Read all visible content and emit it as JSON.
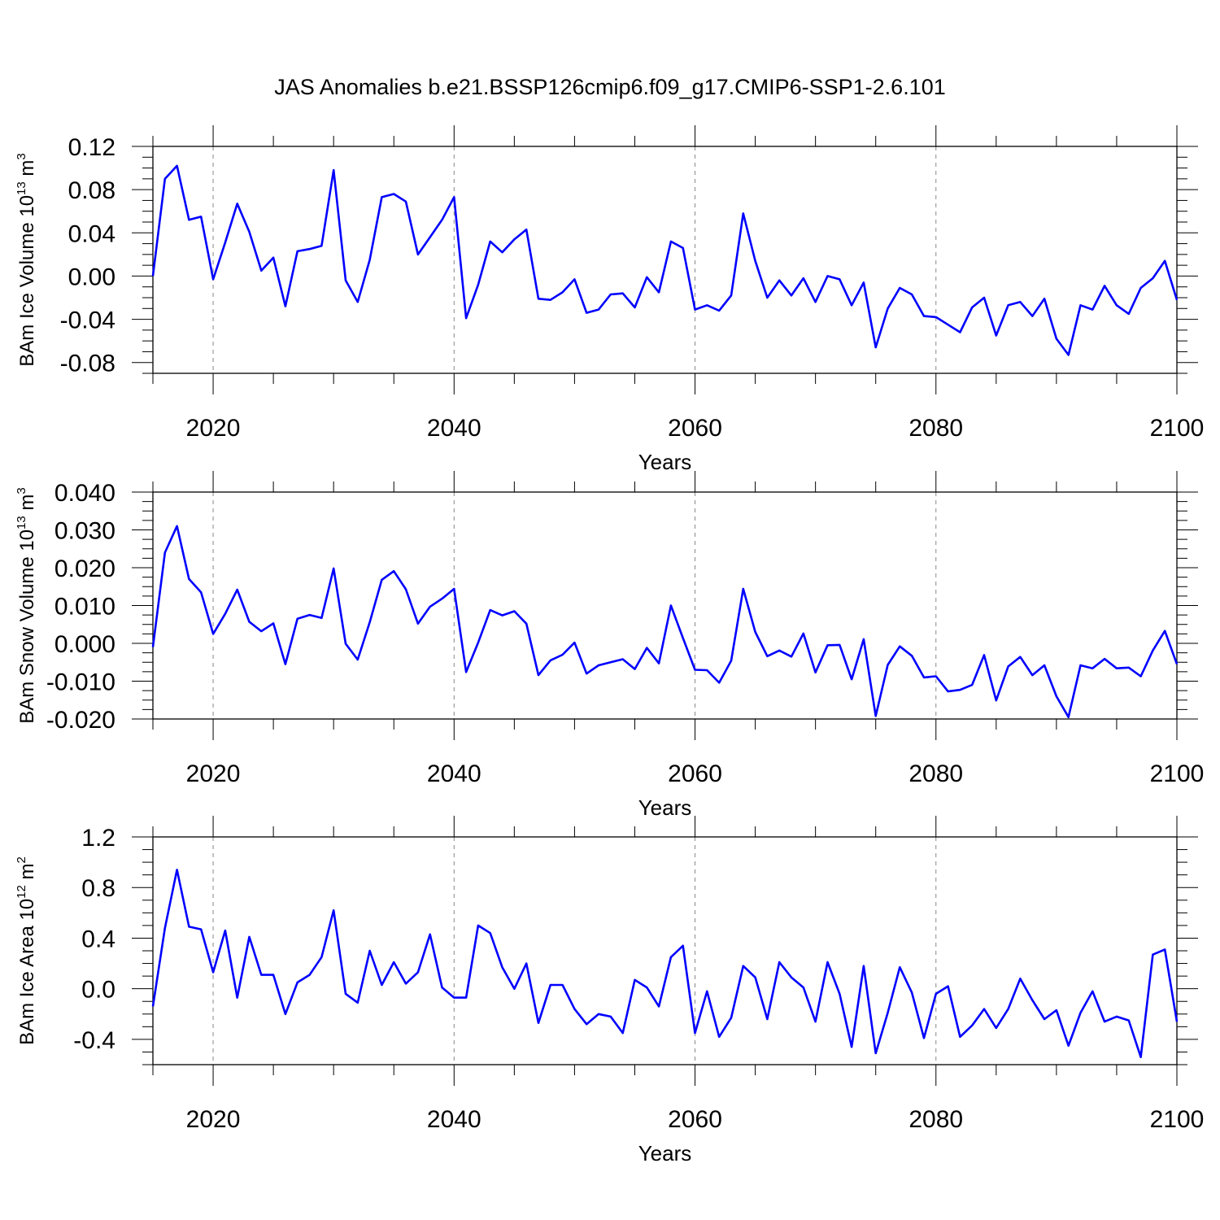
{
  "title": "JAS Anomalies b.e21.BSSP126cmip6.f09_g17.CMIP6-SSP1-2.6.101",
  "colors": {
    "line": "#0000ff",
    "axis": "#000000",
    "grid": "#888888"
  },
  "chart_data": [
    {
      "type": "line",
      "xlabel": "Years",
      "ylabel": {
        "text": "BAm Ice Volume 10",
        "sup1": "13",
        "mid": " m",
        "sup2": "3"
      },
      "xlim": [
        2015,
        2100
      ],
      "ylim": [
        -0.09,
        0.12
      ],
      "xticks": [
        2020,
        2040,
        2060,
        2080,
        2100
      ],
      "xtick_labels": [
        "2020",
        "2040",
        "2060",
        "2080",
        "2100"
      ],
      "yticks": [
        -0.08,
        -0.04,
        0.0,
        0.04,
        0.08,
        0.12
      ],
      "ytick_labels": [
        "-0.08",
        "-0.04",
        "0.00",
        "0.04",
        "0.08",
        "0.12"
      ],
      "grid": "dashed vertical at major x ticks",
      "x_start": 2015,
      "values": [
        0.0,
        0.09,
        0.102,
        0.052,
        0.055,
        -0.003,
        0.031,
        0.067,
        0.041,
        0.005,
        0.017,
        -0.028,
        0.023,
        0.025,
        0.028,
        0.098,
        -0.004,
        -0.024,
        0.015,
        0.073,
        0.076,
        0.069,
        0.02,
        0.036,
        0.052,
        0.073,
        -0.039,
        -0.008,
        0.032,
        0.022,
        0.034,
        0.043,
        -0.021,
        -0.022,
        -0.015,
        -0.003,
        -0.034,
        -0.031,
        -0.017,
        -0.016,
        -0.029,
        -0.001,
        -0.015,
        0.032,
        0.026,
        -0.031,
        -0.027,
        -0.032,
        -0.018,
        0.058,
        0.014,
        -0.02,
        -0.004,
        -0.018,
        -0.002,
        -0.024,
        0.0,
        -0.003,
        -0.027,
        -0.006,
        -0.066,
        -0.03,
        -0.011,
        -0.017,
        -0.037,
        -0.038,
        -0.045,
        -0.052,
        -0.029,
        -0.02,
        -0.055,
        -0.027,
        -0.024,
        -0.037,
        -0.021,
        -0.058,
        -0.073,
        -0.027,
        -0.031,
        -0.009,
        -0.027,
        -0.035,
        -0.011,
        -0.002,
        0.014,
        -0.022
      ]
    },
    {
      "type": "line",
      "xlabel": "Years",
      "ylabel": {
        "text": "BAm Snow Volume 10",
        "sup1": "13",
        "mid": " m",
        "sup2": "3"
      },
      "xlim": [
        2015,
        2100
      ],
      "ylim": [
        -0.02,
        0.04
      ],
      "xticks": [
        2020,
        2040,
        2060,
        2080,
        2100
      ],
      "xtick_labels": [
        "2020",
        "2040",
        "2060",
        "2080",
        "2100"
      ],
      "yticks": [
        -0.02,
        -0.01,
        0.0,
        0.01,
        0.02,
        0.03,
        0.04
      ],
      "ytick_labels": [
        "-0.020",
        "-0.010",
        "0.000",
        "0.010",
        "0.020",
        "0.030",
        "0.040"
      ],
      "grid": "dashed vertical at major x ticks",
      "x_start": 2015,
      "values": [
        -0.001,
        0.024,
        0.031,
        0.017,
        0.0135,
        0.0025,
        0.0078,
        0.0142,
        0.0057,
        0.0032,
        0.0053,
        -0.0055,
        0.0065,
        0.0075,
        0.0067,
        0.0198,
        -0.0001,
        -0.0043,
        0.0056,
        0.0168,
        0.0191,
        0.0143,
        0.0052,
        0.0097,
        0.0118,
        0.0144,
        -0.0076,
        0.0002,
        0.0088,
        0.0074,
        0.0085,
        0.0052,
        -0.0084,
        -0.0045,
        -0.003,
        0.0002,
        -0.008,
        -0.0058,
        -0.005,
        -0.0042,
        -0.0068,
        -0.0012,
        -0.0053,
        0.01,
        0.0014,
        -0.007,
        -0.0071,
        -0.0104,
        -0.0046,
        0.0144,
        0.003,
        -0.0034,
        -0.0019,
        -0.0035,
        0.0026,
        -0.0077,
        -0.0005,
        -0.0004,
        -0.0095,
        0.0011,
        -0.0192,
        -0.0057,
        -0.0008,
        -0.0033,
        -0.009,
        -0.0087,
        -0.0127,
        -0.0123,
        -0.011,
        -0.0031,
        -0.0151,
        -0.0061,
        -0.0036,
        -0.0084,
        -0.0058,
        -0.014,
        -0.0195,
        -0.0058,
        -0.0066,
        -0.0041,
        -0.0066,
        -0.0064,
        -0.0087,
        -0.0019,
        0.0033,
        -0.0055
      ]
    },
    {
      "type": "line",
      "xlabel": "Years",
      "ylabel": {
        "text": "BAm Ice Area 10",
        "sup1": "12",
        "mid": " m",
        "sup2": "2"
      },
      "xlim": [
        2015,
        2100
      ],
      "ylim": [
        -0.6,
        1.2
      ],
      "xticks": [
        2020,
        2040,
        2060,
        2080,
        2100
      ],
      "xtick_labels": [
        "2020",
        "2040",
        "2060",
        "2080",
        "2100"
      ],
      "yticks": [
        -0.4,
        0.0,
        0.4,
        0.8,
        1.2
      ],
      "ytick_labels": [
        "-0.4",
        "0.0",
        "0.4",
        "0.8",
        "1.2"
      ],
      "grid": "dashed vertical at major x ticks",
      "x_start": 2015,
      "values": [
        -0.14,
        0.48,
        0.94,
        0.49,
        0.47,
        0.13,
        0.46,
        -0.07,
        0.41,
        0.11,
        0.11,
        -0.2,
        0.05,
        0.11,
        0.25,
        0.62,
        -0.04,
        -0.11,
        0.3,
        0.03,
        0.21,
        0.04,
        0.13,
        0.43,
        0.01,
        -0.07,
        -0.07,
        0.5,
        0.44,
        0.17,
        0.0,
        0.2,
        -0.27,
        0.03,
        0.03,
        -0.16,
        -0.28,
        -0.2,
        -0.22,
        -0.35,
        0.07,
        0.01,
        -0.14,
        0.25,
        0.34,
        -0.35,
        -0.02,
        -0.38,
        -0.23,
        0.18,
        0.09,
        -0.24,
        0.21,
        0.09,
        0.01,
        -0.26,
        0.21,
        -0.04,
        -0.46,
        0.18,
        -0.51,
        -0.19,
        0.17,
        -0.03,
        -0.39,
        -0.04,
        0.02,
        -0.38,
        -0.29,
        -0.16,
        -0.31,
        -0.16,
        0.08,
        -0.09,
        -0.24,
        -0.17,
        -0.45,
        -0.19,
        -0.02,
        -0.26,
        -0.22,
        -0.25,
        -0.54,
        0.27,
        0.31,
        -0.26
      ]
    }
  ]
}
